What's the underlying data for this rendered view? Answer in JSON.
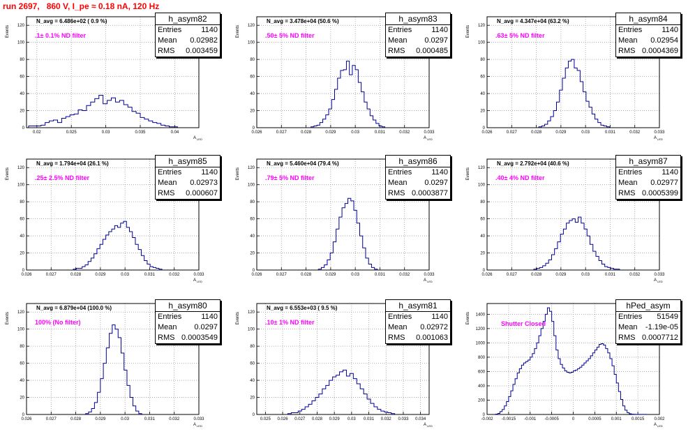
{
  "title": "run 2697,   860 V, I_pe ≈ 0.18 nA, 120 Hz",
  "ylabel": "Events",
  "xlabel_main": "A",
  "xlabel_sub": "LED",
  "stat_labels": {
    "entries": "Entries",
    "mean": "Mean",
    "rms": "RMS"
  },
  "colors": {
    "title": "#ff0000",
    "hist": "#000099",
    "filter": "#ff00ff",
    "grid": "#999999"
  },
  "chart_data": [
    {
      "type": "histogram",
      "name": "h_asym82",
      "navg": "N_avg = 6.486e+02 ( 0.9 %)",
      "filter": ".1± 0.1% ND filter",
      "entries": "1140",
      "mean": "0.02982",
      "rms": "0.003459",
      "xlim": [
        0.0185,
        0.0435
      ],
      "ylim": [
        0,
        130
      ],
      "xticks": [
        0.02,
        0.025,
        0.03,
        0.035,
        0.04
      ],
      "xtick_labels": [
        "0.02",
        "0.025",
        "0.03",
        "0.035",
        "0.04"
      ],
      "yticks": [
        0,
        20,
        40,
        60,
        80,
        100,
        120
      ],
      "bin_edges": [
        0.0188,
        0.0194,
        0.02,
        0.0206,
        0.0212,
        0.0218,
        0.0224,
        0.023,
        0.0236,
        0.0242,
        0.0248,
        0.0254,
        0.026,
        0.0266,
        0.0272,
        0.0278,
        0.0284,
        0.029,
        0.0296,
        0.0302,
        0.0308,
        0.0314,
        0.032,
        0.0326,
        0.0332,
        0.0338,
        0.0344,
        0.035,
        0.0356,
        0.0362,
        0.0368,
        0.0374,
        0.038,
        0.0386,
        0.0392,
        0.0398,
        0.0404
      ],
      "counts": [
        2,
        2,
        2,
        3,
        6,
        8,
        9,
        6,
        11,
        13,
        15,
        16,
        21,
        20,
        26,
        30,
        34,
        38,
        28,
        32,
        35,
        30,
        32,
        27,
        24,
        19,
        17,
        12,
        10,
        8,
        6,
        5,
        3,
        2,
        1,
        1
      ]
    },
    {
      "type": "histogram",
      "name": "h_asym83",
      "navg": "N_avg = 3.478e+04 (50.6 %)",
      "filter": ".50± 5% ND filter",
      "entries": "1140",
      "mean": "0.0297",
      "rms": "0.000485",
      "xlim": [
        0.026,
        0.033
      ],
      "ylim": [
        0,
        130
      ],
      "xticks": [
        0.026,
        0.027,
        0.028,
        0.029,
        0.03,
        0.031,
        0.032,
        0.033
      ],
      "xtick_labels": [
        "0.026",
        "0.027",
        "0.028",
        "0.029",
        "0.03",
        "0.031",
        "0.032",
        "0.033"
      ],
      "yticks": [
        0,
        20,
        40,
        60,
        80,
        100,
        120
      ],
      "bin_edges": [
        0.0282,
        0.02832,
        0.02844,
        0.02856,
        0.02868,
        0.0288,
        0.02892,
        0.02904,
        0.02916,
        0.02928,
        0.0294,
        0.02952,
        0.02964,
        0.02976,
        0.02988,
        0.03,
        0.03012,
        0.03024,
        0.03036,
        0.03048,
        0.0306,
        0.03072,
        0.03084,
        0.03096,
        0.03108,
        0.0312
      ],
      "counts": [
        1,
        2,
        3,
        6,
        10,
        15,
        22,
        33,
        45,
        58,
        67,
        68,
        78,
        62,
        73,
        68,
        53,
        42,
        30,
        22,
        14,
        9,
        5,
        2,
        1
      ]
    },
    {
      "type": "histogram",
      "name": "h_asym84",
      "navg": "N_avg = 4.347e+04 (63.2 %)",
      "filter": ".63± 5% ND filter",
      "entries": "1140",
      "mean": "0.02954",
      "rms": "0.0004369",
      "xlim": [
        0.026,
        0.033
      ],
      "ylim": [
        0,
        130
      ],
      "xticks": [
        0.026,
        0.027,
        0.028,
        0.029,
        0.03,
        0.031,
        0.032,
        0.033
      ],
      "xtick_labels": [
        "0.026",
        "0.027",
        "0.028",
        "0.029",
        "0.03",
        "0.031",
        "0.032",
        "0.033"
      ],
      "yticks": [
        0,
        20,
        40,
        60,
        80,
        100,
        120
      ],
      "bin_edges": [
        0.0281,
        0.02822,
        0.02834,
        0.02846,
        0.02858,
        0.0287,
        0.02882,
        0.02894,
        0.02906,
        0.02918,
        0.0293,
        0.02942,
        0.02954,
        0.02966,
        0.02978,
        0.0299,
        0.03002,
        0.03014,
        0.03026,
        0.03038,
        0.0305,
        0.03062,
        0.03074,
        0.03086,
        0.03098
      ],
      "counts": [
        1,
        2,
        4,
        8,
        13,
        20,
        30,
        44,
        58,
        70,
        78,
        80,
        70,
        67,
        54,
        42,
        31,
        24,
        16,
        10,
        6,
        3,
        2,
        1
      ]
    },
    {
      "type": "histogram",
      "name": "h_asym85",
      "navg": "N_avg = 1.794e+04 (26.1 %)",
      "filter": ".25± 2.5% ND filter",
      "entries": "1140",
      "mean": "0.02973",
      "rms": "0.000607",
      "xlim": [
        0.026,
        0.033
      ],
      "ylim": [
        0,
        130
      ],
      "xticks": [
        0.026,
        0.027,
        0.028,
        0.029,
        0.03,
        0.031,
        0.032,
        0.033
      ],
      "xtick_labels": [
        "0.026",
        "0.027",
        "0.028",
        "0.029",
        "0.03",
        "0.031",
        "0.032",
        "0.033"
      ],
      "yticks": [
        0,
        20,
        40,
        60,
        80,
        100,
        120
      ],
      "bin_edges": [
        0.0279,
        0.02802,
        0.02814,
        0.02826,
        0.02838,
        0.0285,
        0.02862,
        0.02874,
        0.02886,
        0.02898,
        0.0291,
        0.02922,
        0.02934,
        0.02946,
        0.02958,
        0.0297,
        0.02982,
        0.02994,
        0.03006,
        0.03018,
        0.0303,
        0.03042,
        0.03054,
        0.03066,
        0.03078,
        0.0309,
        0.03102,
        0.03114,
        0.03126,
        0.03138,
        0.0315
      ],
      "counts": [
        1,
        2,
        2,
        4,
        6,
        10,
        14,
        19,
        25,
        30,
        36,
        41,
        45,
        48,
        52,
        50,
        55,
        57,
        50,
        45,
        38,
        30,
        24,
        17,
        11,
        7,
        4,
        3,
        2,
        1
      ]
    },
    {
      "type": "histogram",
      "name": "h_asym86",
      "navg": "N_avg = 5.460e+04 (79.4 %)",
      "filter": ".79± 5% ND filter",
      "entries": "1140",
      "mean": "0.0297",
      "rms": "0.0003877",
      "xlim": [
        0.026,
        0.033
      ],
      "ylim": [
        0,
        130
      ],
      "xticks": [
        0.026,
        0.027,
        0.028,
        0.029,
        0.03,
        0.031,
        0.032,
        0.033
      ],
      "xtick_labels": [
        "0.026",
        "0.027",
        "0.028",
        "0.029",
        "0.03",
        "0.031",
        "0.032",
        "0.033"
      ],
      "yticks": [
        0,
        20,
        40,
        60,
        80,
        100,
        120
      ],
      "bin_edges": [
        0.0285,
        0.02862,
        0.02874,
        0.02886,
        0.02898,
        0.0291,
        0.02922,
        0.02934,
        0.02946,
        0.02958,
        0.0297,
        0.02982,
        0.02994,
        0.03006,
        0.03018,
        0.0303,
        0.03042,
        0.03054,
        0.03066,
        0.03078,
        0.0309
      ],
      "counts": [
        1,
        3,
        6,
        12,
        20,
        33,
        48,
        62,
        73,
        78,
        84,
        81,
        70,
        55,
        40,
        26,
        14,
        7,
        3,
        1
      ]
    },
    {
      "type": "histogram",
      "name": "h_asym87",
      "navg": "N_avg = 2.792e+04 (40.6 %)",
      "filter": ".40± 4% ND filter",
      "entries": "1140",
      "mean": "0.02977",
      "rms": "0.0005399",
      "xlim": [
        0.026,
        0.033
      ],
      "ylim": [
        0,
        130
      ],
      "xticks": [
        0.026,
        0.027,
        0.028,
        0.029,
        0.03,
        0.031,
        0.032,
        0.033
      ],
      "xtick_labels": [
        "0.026",
        "0.027",
        "0.028",
        "0.029",
        "0.03",
        "0.031",
        "0.032",
        "0.033"
      ],
      "yticks": [
        0,
        20,
        40,
        60,
        80,
        100,
        120
      ],
      "bin_edges": [
        0.0279,
        0.02802,
        0.02814,
        0.02826,
        0.02838,
        0.0285,
        0.02862,
        0.02874,
        0.02886,
        0.02898,
        0.0291,
        0.02922,
        0.02934,
        0.02946,
        0.02958,
        0.0297,
        0.02982,
        0.02994,
        0.03006,
        0.03018,
        0.0303,
        0.03042,
        0.03054,
        0.03066,
        0.03078,
        0.0309,
        0.03102,
        0.03114,
        0.03126,
        0.03138
      ],
      "counts": [
        1,
        2,
        3,
        5,
        8,
        12,
        18,
        25,
        33,
        42,
        48,
        55,
        58,
        60,
        56,
        62,
        55,
        48,
        40,
        30,
        22,
        16,
        11,
        7,
        4,
        3,
        2,
        1,
        1
      ]
    },
    {
      "type": "histogram",
      "name": "h_asym80",
      "navg": "N_avg = 6.879e+04 (100.0 %)",
      "filter": "100% (No filter)",
      "entries": "1140",
      "mean": "0.0297",
      "rms": "0.0003549",
      "xlim": [
        0.026,
        0.033
      ],
      "ylim": [
        0,
        130
      ],
      "xticks": [
        0.026,
        0.027,
        0.028,
        0.029,
        0.03,
        0.031,
        0.032,
        0.033
      ],
      "xtick_labels": [
        "0.026",
        "0.027",
        "0.028",
        "0.029",
        "0.03",
        "0.031",
        "0.032",
        "0.033"
      ],
      "yticks": [
        0,
        20,
        40,
        60,
        80,
        100,
        120
      ],
      "bin_edges": [
        0.0284,
        0.02852,
        0.02864,
        0.02876,
        0.02888,
        0.029,
        0.02912,
        0.02924,
        0.02936,
        0.02948,
        0.0296,
        0.02972,
        0.02984,
        0.02996,
        0.03008,
        0.0302,
        0.03032,
        0.03044,
        0.03056,
        0.03068
      ],
      "counts": [
        1,
        3,
        7,
        14,
        26,
        42,
        60,
        78,
        95,
        105,
        100,
        90,
        72,
        52,
        34,
        20,
        10,
        4,
        1
      ]
    },
    {
      "type": "histogram",
      "name": "h_asym81",
      "navg": "N_avg = 6.553e+03 ( 9.5 %)",
      "filter": ".10± 1% ND filter",
      "entries": "1140",
      "mean": "0.02972",
      "rms": "0.001063",
      "xlim": [
        0.0245,
        0.0345
      ],
      "ylim": [
        0,
        130
      ],
      "xticks": [
        0.025,
        0.026,
        0.027,
        0.028,
        0.029,
        0.03,
        0.031,
        0.032,
        0.033,
        0.034
      ],
      "xtick_labels": [
        "0.025",
        "0.026",
        "0.027",
        "0.028",
        "0.029",
        "0.03",
        "0.031",
        "0.032",
        "0.033",
        "0.034"
      ],
      "yticks": [
        0,
        20,
        40,
        60,
        80,
        100,
        120
      ],
      "bin_edges": [
        0.0263,
        0.0265,
        0.0267,
        0.0269,
        0.0271,
        0.0273,
        0.0275,
        0.0277,
        0.0279,
        0.0281,
        0.0283,
        0.0285,
        0.0287,
        0.0289,
        0.0291,
        0.0293,
        0.0295,
        0.0297,
        0.0299,
        0.0301,
        0.0303,
        0.0305,
        0.0307,
        0.0309,
        0.0311,
        0.0313,
        0.0315,
        0.0317,
        0.0319,
        0.0321,
        0.0323,
        0.0325
      ],
      "counts": [
        1,
        2,
        2,
        4,
        6,
        9,
        12,
        16,
        20,
        24,
        30,
        34,
        40,
        44,
        46,
        50,
        52,
        45,
        48,
        42,
        36,
        30,
        24,
        18,
        13,
        9,
        6,
        4,
        3,
        2,
        1
      ]
    },
    {
      "type": "histogram",
      "name": "hPed_asym",
      "navg": "",
      "filter": "Shutter Closed",
      "entries": "51549",
      "mean": "-1.19e-05",
      "rms": "0.0007712",
      "xlim": [
        -0.002,
        0.002
      ],
      "ylim": [
        0,
        1550
      ],
      "xticks": [
        -0.002,
        -0.0015,
        -0.001,
        -0.0005,
        0,
        0.0005,
        0.001,
        0.0015,
        0.002
      ],
      "xtick_labels": [
        "-0.002",
        "-0.0015",
        "-0.001",
        "-0.0005",
        "0",
        "0.0005",
        "0.001",
        "0.0015",
        "0.002"
      ],
      "yticks": [
        0,
        200,
        400,
        600,
        800,
        1000,
        1200,
        1400
      ],
      "bin_edges": [
        -0.0018,
        -0.00175,
        -0.0017,
        -0.00165,
        -0.0016,
        -0.00155,
        -0.0015,
        -0.00145,
        -0.0014,
        -0.00135,
        -0.0013,
        -0.00125,
        -0.0012,
        -0.00115,
        -0.0011,
        -0.00105,
        -0.001,
        -0.00095,
        -0.0009,
        -0.00085,
        -0.0008,
        -0.00075,
        -0.0007,
        -0.00065,
        -0.0006,
        -0.00055,
        -0.0005,
        -0.00045,
        -0.0004,
        -0.00035,
        -0.0003,
        -0.00025,
        -0.0002,
        -0.00015,
        -0.0001,
        -5e-05,
        0,
        5e-05,
        0.0001,
        0.00015,
        0.0002,
        0.00025,
        0.0003,
        0.00035,
        0.0004,
        0.00045,
        0.0005,
        0.00055,
        0.0006,
        0.00065,
        0.0007,
        0.00075,
        0.0008,
        0.00085,
        0.0009,
        0.00095,
        0.001,
        0.00105,
        0.0011,
        0.00115,
        0.0012,
        0.00125,
        0.0013,
        0.00135,
        0.0014,
        0.00145,
        0.0015,
        0.00155,
        0.0016,
        0.00165,
        0.0017
      ],
      "counts": [
        5,
        15,
        40,
        70,
        120,
        180,
        250,
        330,
        420,
        500,
        580,
        640,
        690,
        720,
        740,
        760,
        800,
        850,
        920,
        1000,
        1100,
        1200,
        1300,
        1400,
        1490,
        1440,
        1300,
        1100,
        900,
        780,
        700,
        650,
        610,
        590,
        580,
        590,
        610,
        620,
        640,
        660,
        690,
        720,
        750,
        780,
        820,
        860,
        900,
        940,
        980,
        990,
        970,
        920,
        860,
        780,
        680,
        560,
        440,
        320,
        210,
        120,
        60,
        25,
        10,
        4,
        2,
        1,
        1,
        1,
        1,
        1
      ]
    }
  ]
}
